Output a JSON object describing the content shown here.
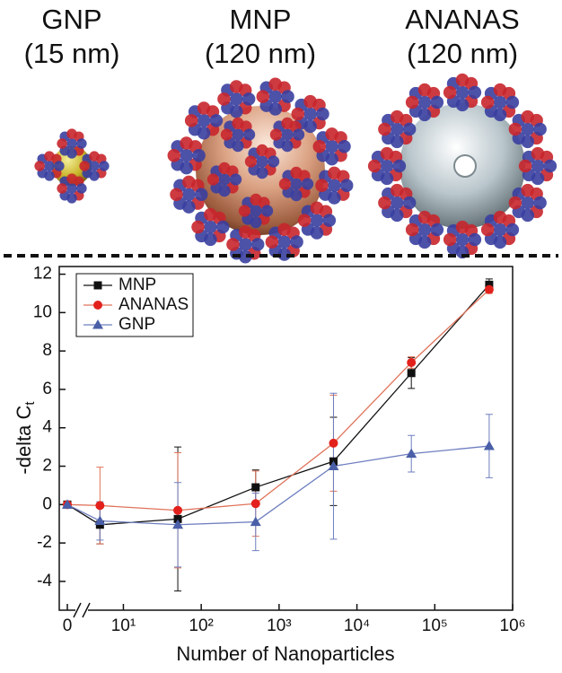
{
  "illustration": {
    "labels": [
      {
        "name": "GNP",
        "size": "(15 nm)"
      },
      {
        "name": "MNP",
        "size": "(120 nm)"
      },
      {
        "name": "ANANAS",
        "size": "(120 nm)"
      }
    ]
  },
  "chart_data": {
    "type": "line",
    "x_label": "Number of Nanoparticles",
    "y_label": "-delta C",
    "y_label_subscript": "t",
    "x": [
      0,
      5,
      50,
      500,
      5000,
      50000,
      500000
    ],
    "x_scale": "log",
    "x_axis_break": true,
    "xlim": [
      1.5,
      1000000
    ],
    "xticks": [
      {
        "value": 0,
        "label": "0"
      },
      {
        "value": 10,
        "label": "10¹"
      },
      {
        "value": 100,
        "label": "10²"
      },
      {
        "value": 1000,
        "label": "10³"
      },
      {
        "value": 10000,
        "label": "10⁴"
      },
      {
        "value": 100000,
        "label": "10⁵"
      },
      {
        "value": 1000000,
        "label": "10⁶"
      }
    ],
    "ylim": [
      -5.5,
      12.4
    ],
    "yticks": [
      -4,
      -2,
      0,
      2,
      4,
      6,
      8,
      10,
      12
    ],
    "legend": "upper left",
    "series": [
      {
        "name": "MNP",
        "color": "#111111",
        "line_color": "#111111",
        "marker": "square",
        "values": [
          0,
          -1.05,
          -0.75,
          0.9,
          2.25,
          6.85,
          11.45
        ],
        "errors": [
          0.1,
          1.0,
          3.75,
          0.9,
          2.3,
          0.8,
          0.3
        ]
      },
      {
        "name": "ANANAS",
        "color": "#e3211c",
        "line_color": "#e0735a",
        "marker": "circle",
        "values": [
          0,
          -0.05,
          -0.3,
          0.05,
          3.2,
          7.4,
          11.2
        ],
        "errors": [
          0.1,
          2.0,
          3.0,
          1.7,
          2.5,
          0.3,
          0.2
        ]
      },
      {
        "name": "GNP",
        "color": "#4a5fa8",
        "line_color": "#6f7fc0",
        "marker": "triangle",
        "values": [
          0,
          -0.85,
          -1.05,
          -0.9,
          2.0,
          2.65,
          3.05
        ],
        "errors": [
          0.1,
          1.0,
          2.2,
          1.5,
          3.8,
          0.95,
          1.65
        ]
      }
    ]
  }
}
